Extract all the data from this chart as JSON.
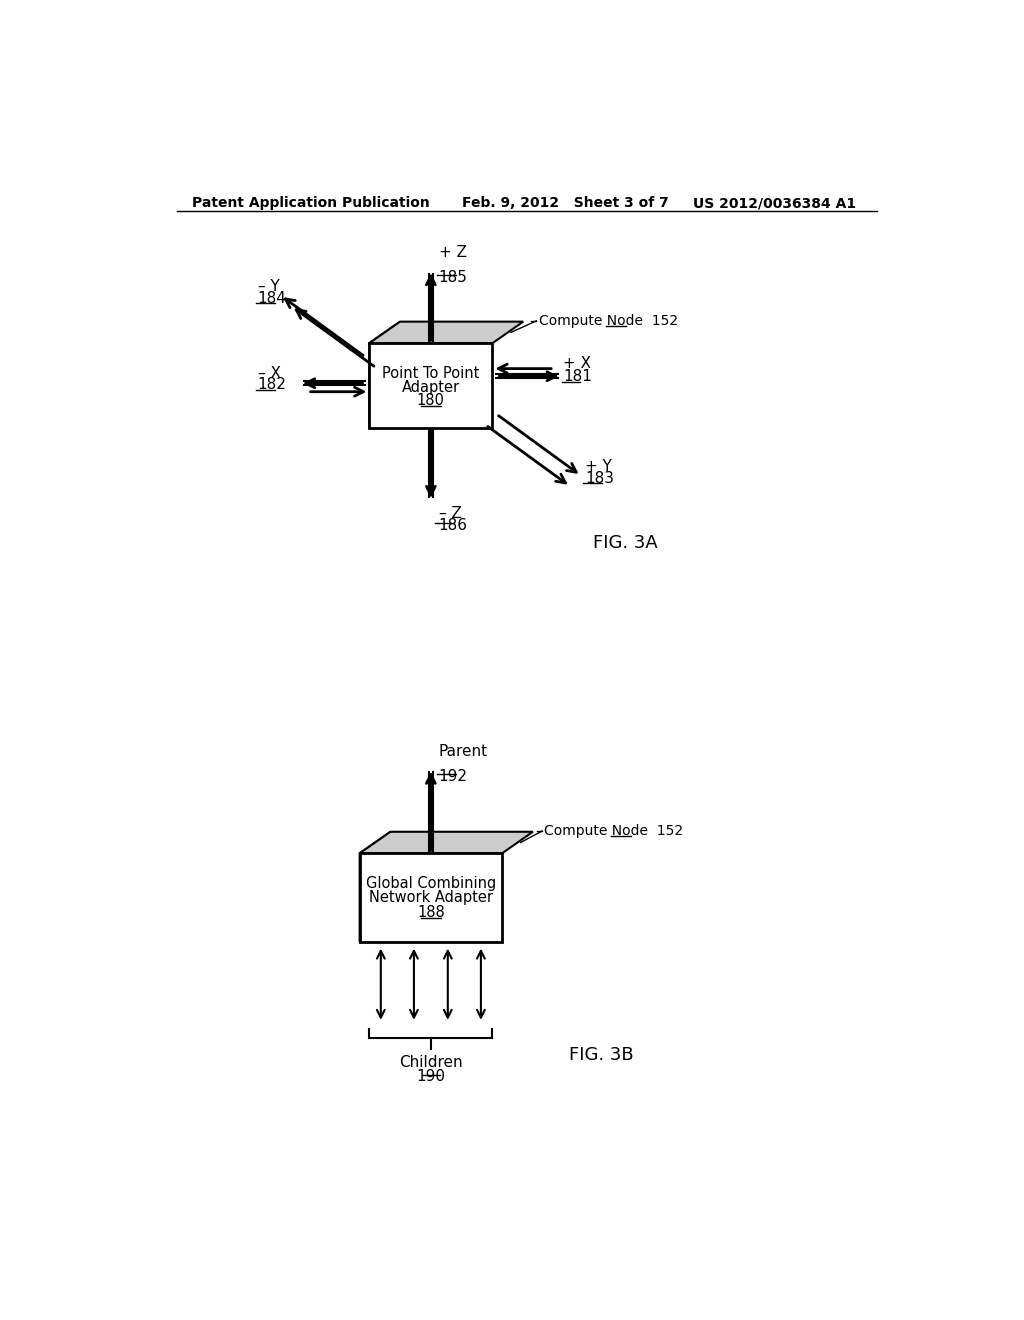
{
  "header_left": "Patent Application Publication",
  "header_mid": "Feb. 9, 2012   Sheet 3 of 7",
  "header_right": "US 2012/0036384 A1",
  "fig3a_label": "FIG. 3A",
  "fig3b_label": "FIG. 3B",
  "compute_node_label": "Compute Node  152",
  "compute_node_label2": "Compute Node  152",
  "pz_label": "+ Z",
  "pz_num": "185",
  "mz_label": "– Z",
  "mz_num": "186",
  "px_label": "+ X",
  "px_num": "181",
  "mx_label": "– X",
  "mx_num": "182",
  "py_label": "+ Y",
  "py_num": "183",
  "my_label": "– Y",
  "my_num": "184",
  "parent_label": "Parent",
  "parent_num": "192",
  "children_label": "Children",
  "children_num": "190",
  "bg_color": "#ffffff",
  "box_face_color": "#ffffff",
  "box_edge_color": "#000000",
  "side_color": "#a0a0a0",
  "top_color": "#cccccc"
}
